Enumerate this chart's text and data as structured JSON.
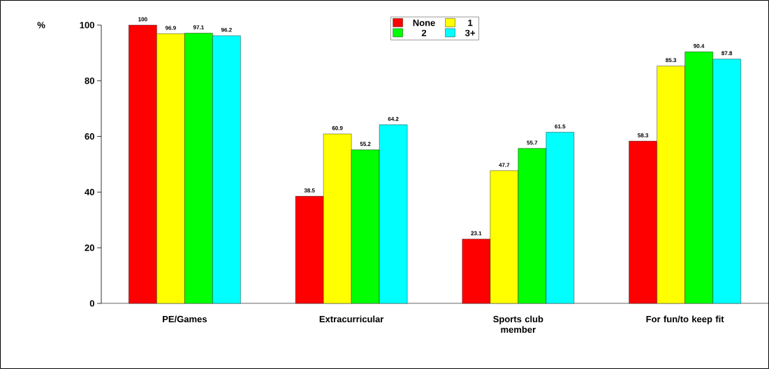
{
  "chart_data": {
    "type": "bar",
    "ylabel": "%",
    "categories": [
      "PE/Games",
      "Extracurricular",
      "Sports club member",
      "For fun/to keep fit"
    ],
    "series": [
      {
        "name": "None",
        "color": "#ff0000",
        "values": [
          100,
          38.5,
          23.1,
          58.3
        ]
      },
      {
        "name": "1",
        "color": "#ffff00",
        "values": [
          96.9,
          60.9,
          47.7,
          85.3
        ]
      },
      {
        "name": "2",
        "color": "#00ff00",
        "values": [
          97.1,
          55.2,
          55.7,
          90.4
        ]
      },
      {
        "name": "3+",
        "color": "#00ffff",
        "values": [
          96.2,
          64.2,
          61.5,
          87.8
        ]
      }
    ],
    "ylim": [
      0,
      100
    ],
    "yticks": [
      0,
      20,
      40,
      60,
      80,
      100
    ],
    "data_labels": true,
    "legend": "top",
    "grid": false
  }
}
